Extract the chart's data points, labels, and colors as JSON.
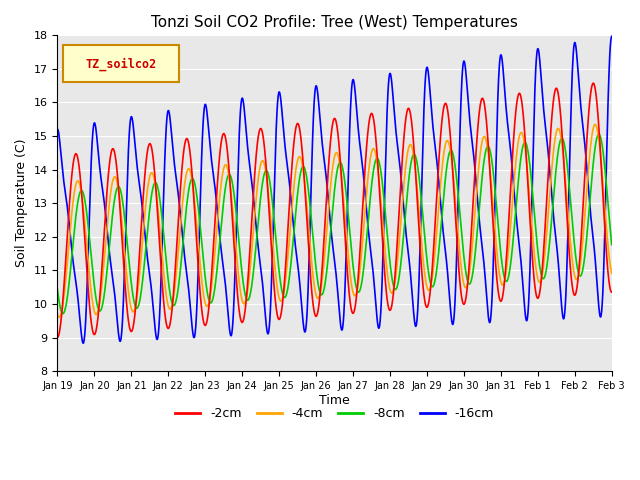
{
  "title": "Tonzi Soil CO2 Profile: Tree (West) Temperatures",
  "xlabel": "Time",
  "ylabel": "Soil Temperature (C)",
  "ylim": [
    8.0,
    18.0
  ],
  "yticks": [
    8.0,
    9.0,
    10.0,
    11.0,
    12.0,
    13.0,
    14.0,
    15.0,
    16.0,
    17.0,
    18.0
  ],
  "xtick_labels": [
    "Jan 19",
    "Jan 20",
    "Jan 21",
    "Jan 22",
    "Jan 23",
    "Jan 24",
    "Jan 25",
    "Jan 26",
    "Jan 27",
    "Jan 28",
    "Jan 29",
    "Jan 30",
    "Jan 31",
    "Feb 1",
    "Feb 2",
    "Feb 3"
  ],
  "legend_label": "TZ_soilco2",
  "series_labels": [
    "-2cm",
    "-4cm",
    "-8cm",
    "-16cm"
  ],
  "series_colors": [
    "#ff0000",
    "#ffa500",
    "#00cc00",
    "#0000ff"
  ],
  "series_lw": [
    1.2,
    1.2,
    1.2,
    1.2
  ],
  "bg_color": "#e8e8e8",
  "fig_color": "#ffffff",
  "num_points": 2000,
  "num_days": 15
}
